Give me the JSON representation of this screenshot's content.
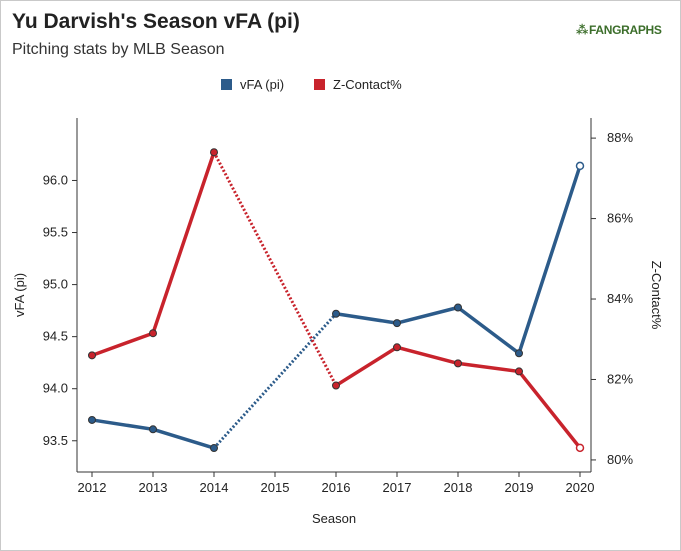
{
  "title": "Yu Darvish's Season vFA (pi)",
  "subtitle": "Pitching stats by MLB Season",
  "logo_text": "FANGRAPHS",
  "chart_data": {
    "type": "line",
    "title": "Yu Darvish's Season vFA (pi)",
    "subtitle": "Pitching stats by MLB Season",
    "xlabel": "Season",
    "ylabel_left": "vFA (pi)",
    "ylabel_right": "Z-Contact%",
    "x": [
      2012,
      2013,
      2014,
      2015,
      2016,
      2017,
      2018,
      2019,
      2020
    ],
    "x_tick_labels": [
      "2012",
      "2013",
      "2014",
      "2015",
      "2016",
      "2017",
      "2018",
      "2019",
      "2020"
    ],
    "ylim_left": [
      93.2,
      96.6
    ],
    "yticks_left": [
      "93.5",
      "94.0",
      "94.5",
      "95.0",
      "95.5",
      "96.0"
    ],
    "ylim_right": [
      79.7,
      88.5
    ],
    "yticks_right": [
      "80%",
      "82%",
      "84%",
      "86%",
      "88%"
    ],
    "legend_position": "top-center",
    "grid": false,
    "series": [
      {
        "name": "vFA (pi)",
        "axis": "left",
        "color": "#2c5b8a",
        "points": [
          {
            "x": 2012,
            "y": 93.7
          },
          {
            "x": 2013,
            "y": 93.61
          },
          {
            "x": 2014,
            "y": 93.43
          },
          {
            "x": 2016,
            "y": 94.72
          },
          {
            "x": 2017,
            "y": 94.63
          },
          {
            "x": 2018,
            "y": 94.78
          },
          {
            "x": 2019,
            "y": 94.34
          },
          {
            "x": 2020,
            "y": 96.14
          }
        ]
      },
      {
        "name": "Z-Contact%",
        "axis": "right",
        "color": "#c8232c",
        "points": [
          {
            "x": 2012,
            "y": 82.6
          },
          {
            "x": 2013,
            "y": 83.15
          },
          {
            "x": 2014,
            "y": 87.65
          },
          {
            "x": 2016,
            "y": 81.85
          },
          {
            "x": 2017,
            "y": 82.8
          },
          {
            "x": 2018,
            "y": 82.4
          },
          {
            "x": 2019,
            "y": 82.2
          },
          {
            "x": 2020,
            "y": 80.3
          }
        ]
      }
    ]
  }
}
